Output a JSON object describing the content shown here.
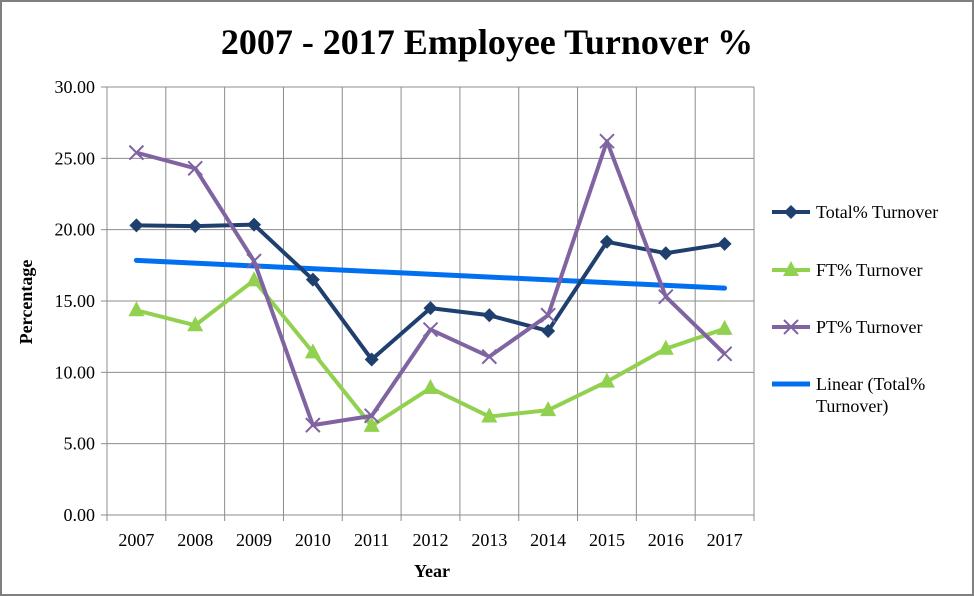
{
  "chart_data": {
    "type": "line",
    "title": "2007 - 2017 Employee Turnover %",
    "xlabel": "Year",
    "ylabel": "Percentage",
    "categories": [
      "2007",
      "2008",
      "2009",
      "2010",
      "2011",
      "2012",
      "2013",
      "2014",
      "2015",
      "2016",
      "2017"
    ],
    "ylim": [
      0,
      30
    ],
    "yticks": [
      "0.00",
      "5.00",
      "10.00",
      "15.00",
      "20.00",
      "25.00",
      "30.00"
    ],
    "grid": true,
    "legend_position": "right",
    "series": [
      {
        "name": "Total% Turnover",
        "color": "#1f3f6e",
        "marker": "diamond",
        "values": [
          20.3,
          20.25,
          20.35,
          16.5,
          10.9,
          14.5,
          14.0,
          12.9,
          19.15,
          18.35,
          19.0
        ]
      },
      {
        "name": "FT% Turnover",
        "color": "#92d050",
        "marker": "triangle",
        "values": [
          14.35,
          13.3,
          16.45,
          11.4,
          6.25,
          8.9,
          6.9,
          7.35,
          9.35,
          11.65,
          13.05
        ]
      },
      {
        "name": "PT% Turnover",
        "color": "#8064a2",
        "marker": "x",
        "values": [
          25.4,
          24.3,
          17.8,
          6.3,
          6.95,
          13.0,
          11.1,
          14.0,
          26.2,
          15.3,
          11.3
        ]
      }
    ],
    "trendline": {
      "name": "Linear (Total% Turnover)",
      "color": "#0070f0",
      "start": 17.85,
      "end": 15.9
    }
  }
}
